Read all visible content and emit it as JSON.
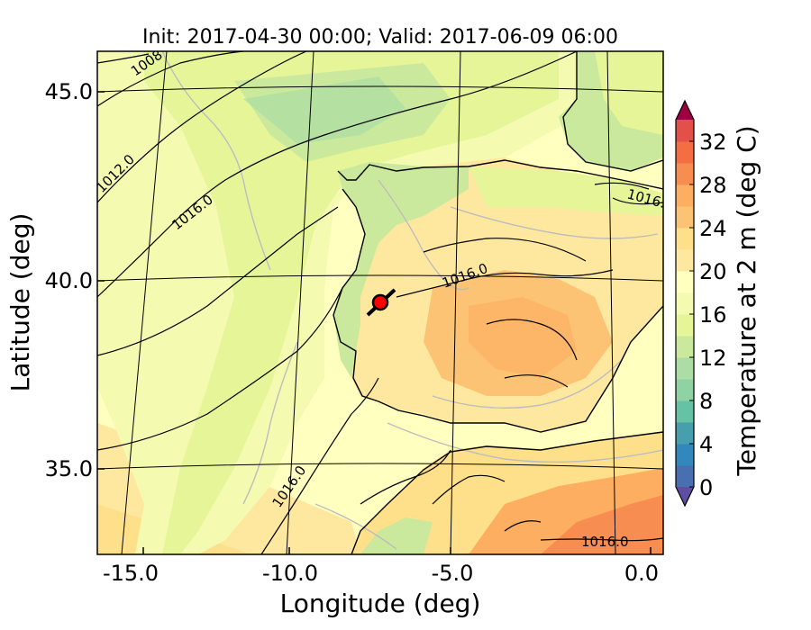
{
  "title": "Init: 2017-04-30 00:00; Valid: 2017-06-09 06:00",
  "xlabel": "Longitude (deg)",
  "ylabel": "Latitude (deg)",
  "x_ticks": [
    "-15.0",
    "-10.0",
    "-5.0",
    "0.0"
  ],
  "y_ticks": [
    "45.0",
    "40.0",
    "35.0"
  ],
  "colorbar": {
    "label": "Temperature at 2 m (deg C)",
    "ticks": [
      "0",
      "4",
      "8",
      "12",
      "16",
      "20",
      "24",
      "28",
      "32"
    ],
    "levels": [
      0,
      2,
      4,
      6,
      8,
      10,
      12,
      14,
      16,
      18,
      20,
      22,
      24,
      26,
      28,
      30,
      32,
      34
    ],
    "colors": [
      "#5e4fa2",
      "#4a6fb0",
      "#3288bd",
      "#479ead",
      "#66c2a5",
      "#8fd2a4",
      "#abdda4",
      "#cae99d",
      "#e6f598",
      "#f4fab0",
      "#ffffbf",
      "#fee8a0",
      "#fee08b",
      "#fdc374",
      "#fdae61",
      "#f88d52",
      "#f46d43",
      "#e3504a",
      "#d53e4f",
      "#c42b50",
      "#9e0142"
    ]
  },
  "contour_labels": [
    "1008",
    "1012.0",
    "1016.0",
    "1016.0",
    "1016.0",
    "1016.0",
    "1016.0"
  ],
  "marker": {
    "label": "",
    "color": "#ff0000"
  }
}
